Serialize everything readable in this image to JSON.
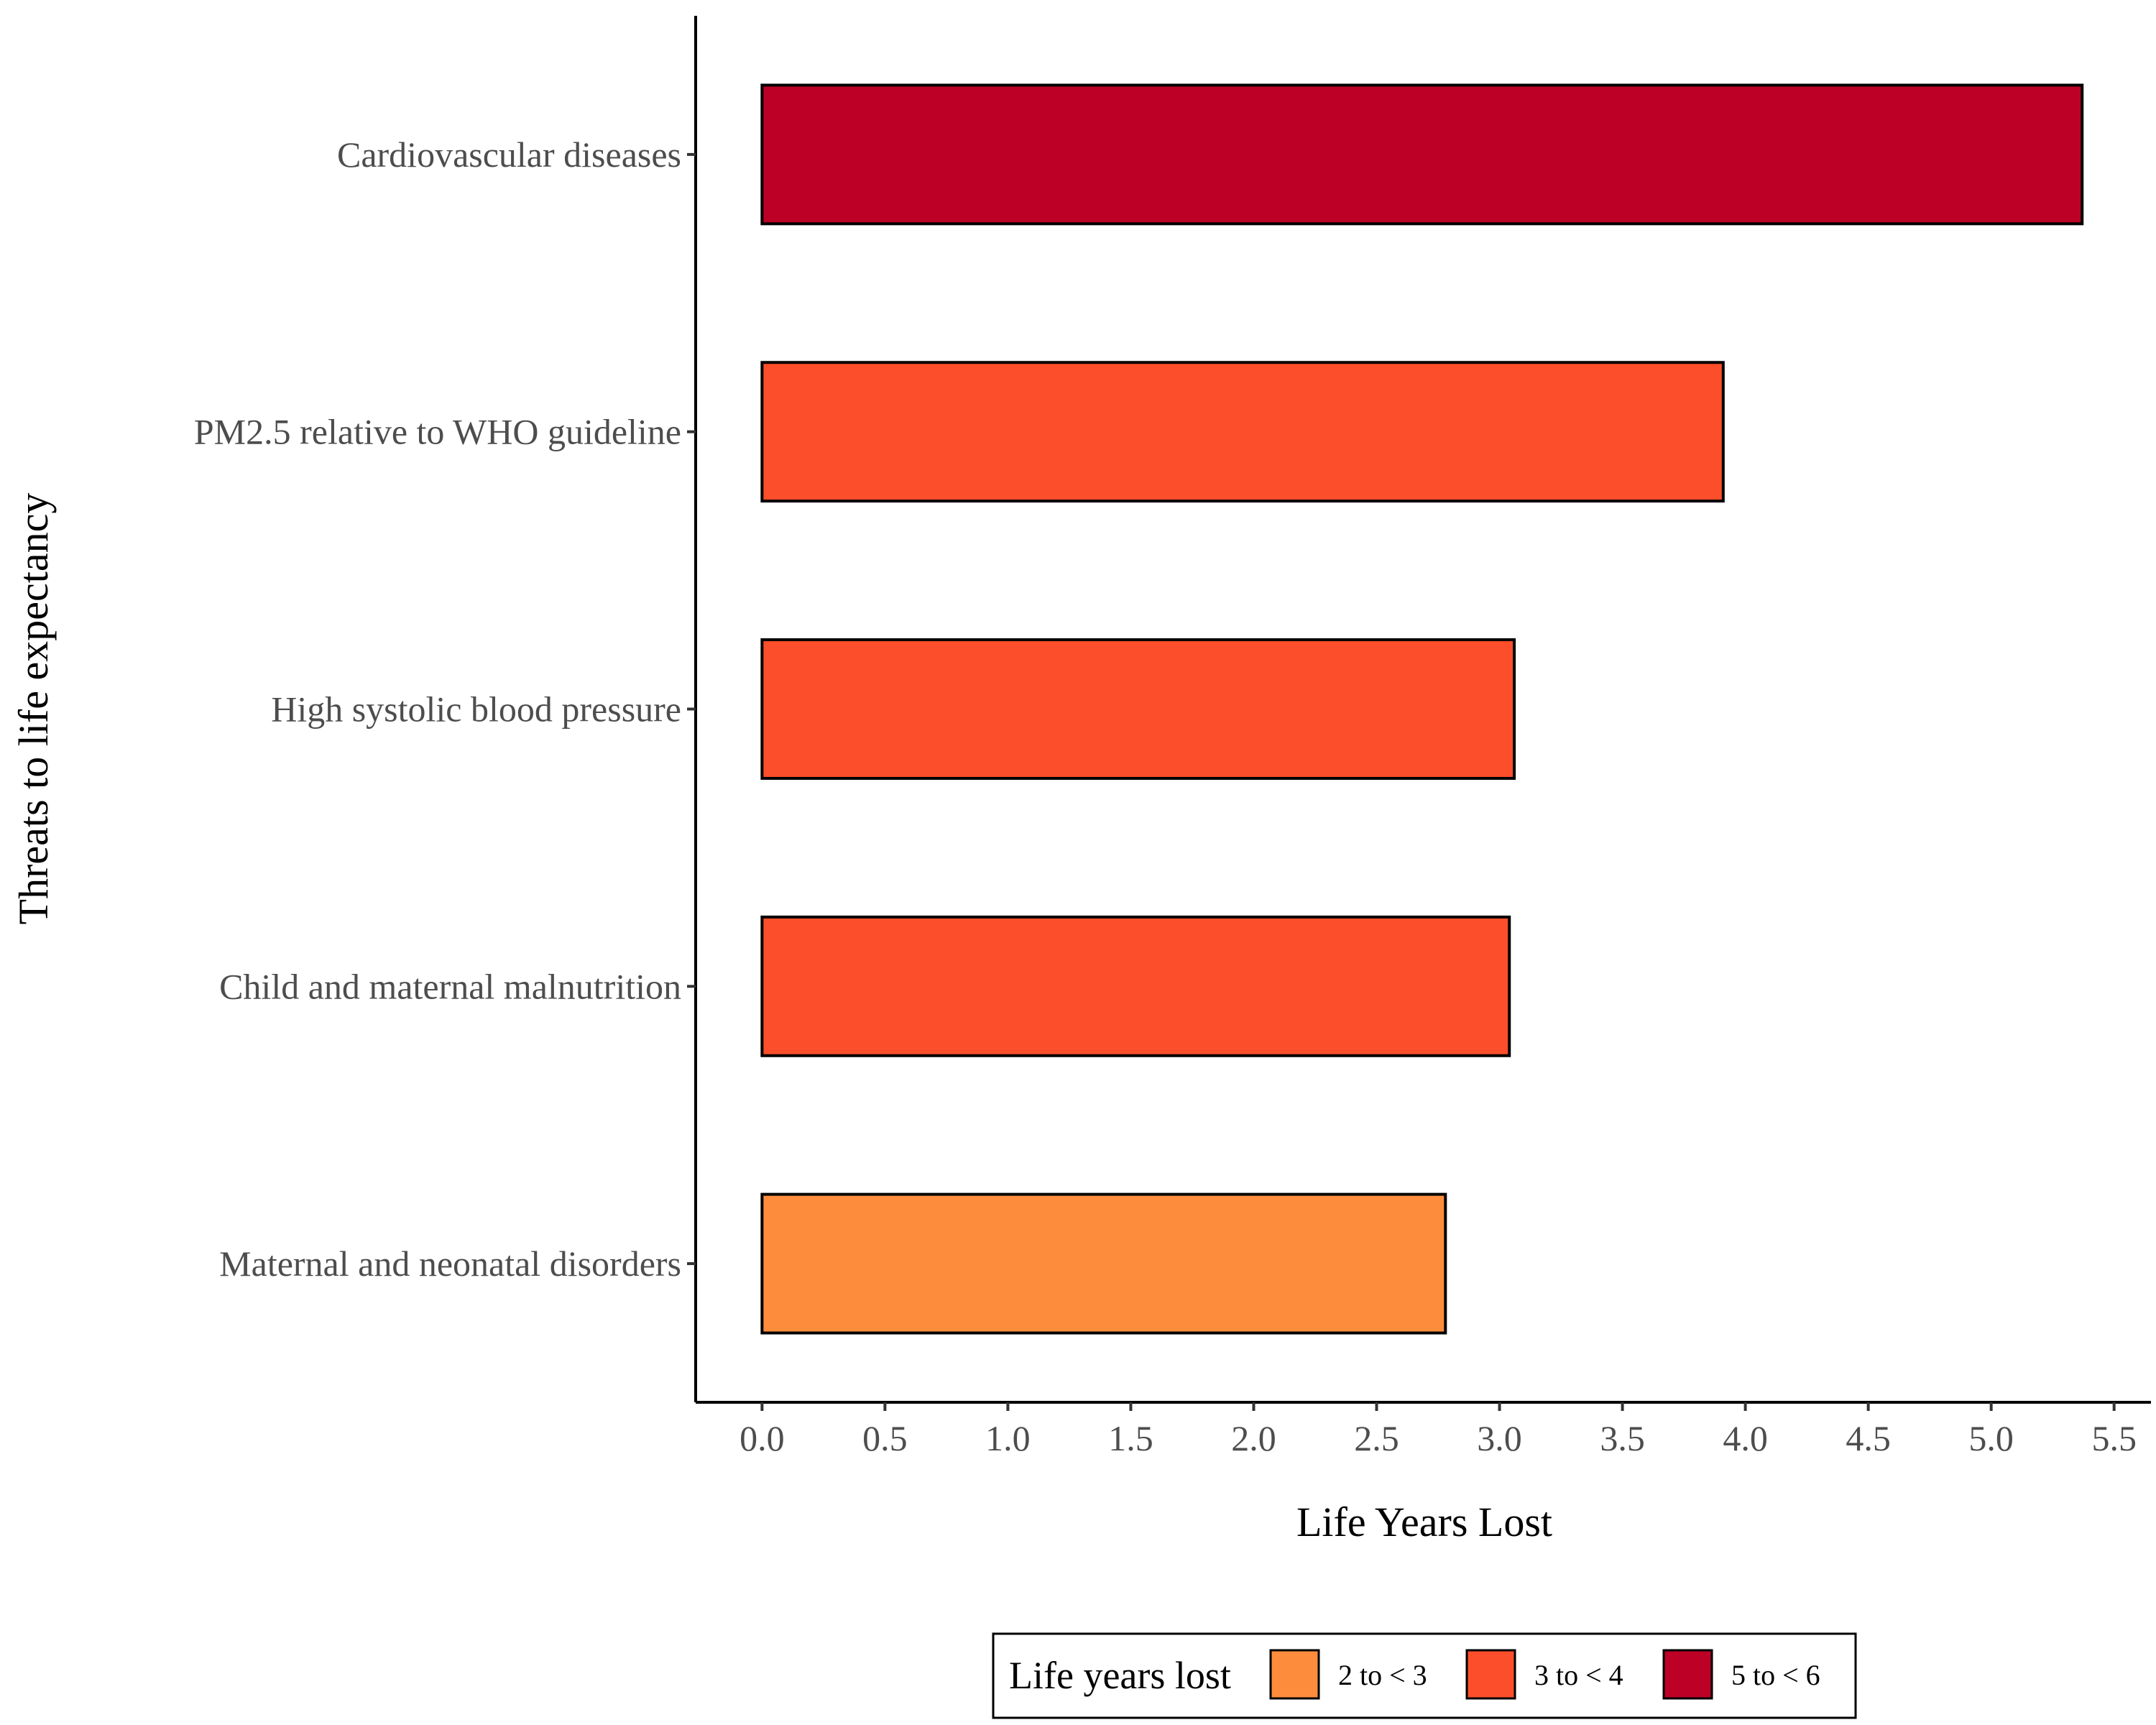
{
  "chart_data": {
    "type": "bar",
    "orientation": "horizontal",
    "categories": [
      "Cardiovascular diseases",
      "PM2.5 relative to WHO guideline",
      "High systolic blood pressure",
      "Child and maternal malnutrition",
      "Maternal and neonatal disorders"
    ],
    "values": [
      5.37,
      3.91,
      3.06,
      3.04,
      2.78
    ],
    "value_bins": [
      "5 to < 6",
      "3 to < 4",
      "3 to < 4",
      "3 to < 4",
      "2 to < 3"
    ],
    "xlabel": "Life Years Lost",
    "ylabel": "Threats to life expectancy",
    "xlim": [
      -0.27,
      5.65
    ],
    "xticks": [
      0.0,
      0.5,
      1.0,
      1.5,
      2.0,
      2.5,
      3.0,
      3.5,
      4.0,
      4.5,
      5.0,
      5.5
    ],
    "xtick_labels": [
      "0.0",
      "0.5",
      "1.0",
      "1.5",
      "2.0",
      "2.5",
      "3.0",
      "3.5",
      "4.0",
      "4.5",
      "5.0",
      "5.5"
    ],
    "grid": false,
    "legend": {
      "title": "Life years lost",
      "position": "bottom",
      "items": [
        {
          "label": "2 to < 3",
          "color": "#fd8d3c"
        },
        {
          "label": "3 to < 4",
          "color": "#fc4e2a"
        },
        {
          "label": "5 to < 6",
          "color": "#bd0026"
        }
      ]
    },
    "colors": {
      "2 to < 3": "#fd8d3c",
      "3 to < 4": "#fc4e2a",
      "5 to < 6": "#bd0026"
    }
  }
}
